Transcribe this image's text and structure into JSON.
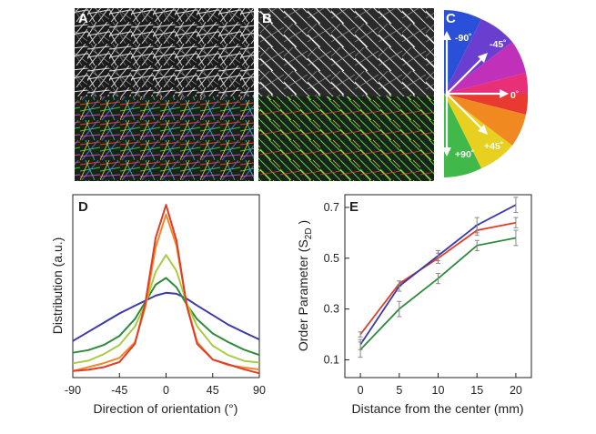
{
  "panels": {
    "a_label": "A",
    "b_label": "B",
    "c_label": "C",
    "d_label": "D",
    "e_label": "E"
  },
  "wheel": {
    "labels": [
      "-90˚",
      "-45˚",
      "0˚",
      "+45˚",
      "+90˚"
    ]
  },
  "chart_data": [
    {
      "type": "line",
      "panel": "D",
      "title": "",
      "xlabel": "Direction of orientation (°)",
      "ylabel": "Distribution (a.u.)",
      "xlim": [
        -90,
        90
      ],
      "xticks": [
        "-90",
        "-45",
        "0",
        "45",
        "90"
      ],
      "x": [
        -90,
        -75,
        -60,
        -45,
        -30,
        -20,
        -10,
        0,
        10,
        20,
        30,
        45,
        60,
        75,
        90
      ],
      "series": [
        {
          "color": "#3a3aa8",
          "values": [
            0.28,
            0.34,
            0.41,
            0.49,
            0.56,
            0.6,
            0.63,
            0.64,
            0.63,
            0.6,
            0.56,
            0.49,
            0.41,
            0.34,
            0.28
          ]
        },
        {
          "color": "#2e8b3a",
          "values": [
            0.18,
            0.21,
            0.26,
            0.33,
            0.45,
            0.57,
            0.7,
            0.76,
            0.7,
            0.57,
            0.45,
            0.33,
            0.26,
            0.21,
            0.18
          ]
        },
        {
          "color": "#a8cc44",
          "values": [
            0.12,
            0.14,
            0.18,
            0.24,
            0.38,
            0.56,
            0.82,
            0.95,
            0.82,
            0.56,
            0.38,
            0.24,
            0.18,
            0.14,
            0.12
          ]
        },
        {
          "color": "#f08a28",
          "values": [
            0.05,
            0.07,
            0.1,
            0.15,
            0.28,
            0.55,
            1.0,
            1.24,
            1.0,
            0.55,
            0.28,
            0.15,
            0.1,
            0.07,
            0.05
          ]
        },
        {
          "color": "#e23c28",
          "values": [
            0.04,
            0.06,
            0.09,
            0.13,
            0.26,
            0.56,
            1.06,
            1.32,
            1.06,
            0.56,
            0.26,
            0.13,
            0.09,
            0.06,
            0.04
          ]
        }
      ]
    },
    {
      "type": "line",
      "panel": "E",
      "title": "",
      "xlabel": "Distance from the center (mm)",
      "ylabel": "Order Parameter (S",
      "ylabel_sub": "2D",
      "ylabel_end": " )",
      "xlim": [
        -2,
        22
      ],
      "ylim": [
        0.03,
        0.75
      ],
      "xticks": [
        "0",
        "5",
        "10",
        "15",
        "20"
      ],
      "yticks": [
        "0.1",
        "0.3",
        "0.5",
        "0.7"
      ],
      "x": [
        0,
        5,
        10,
        15,
        20
      ],
      "series": [
        {
          "color": "#e23c28",
          "values": [
            0.2,
            0.4,
            0.5,
            0.61,
            0.64
          ],
          "errors": [
            0.01,
            0.01,
            0.02,
            0.02,
            0.02
          ]
        },
        {
          "color": "#3a3aa8",
          "values": [
            0.16,
            0.39,
            0.51,
            0.63,
            0.71
          ],
          "errors": [
            0.02,
            0.02,
            0.02,
            0.03,
            0.03
          ]
        },
        {
          "color": "#2e8b3a",
          "values": [
            0.14,
            0.3,
            0.42,
            0.55,
            0.58
          ],
          "errors": [
            0.03,
            0.03,
            0.02,
            0.02,
            0.03
          ]
        }
      ]
    }
  ]
}
